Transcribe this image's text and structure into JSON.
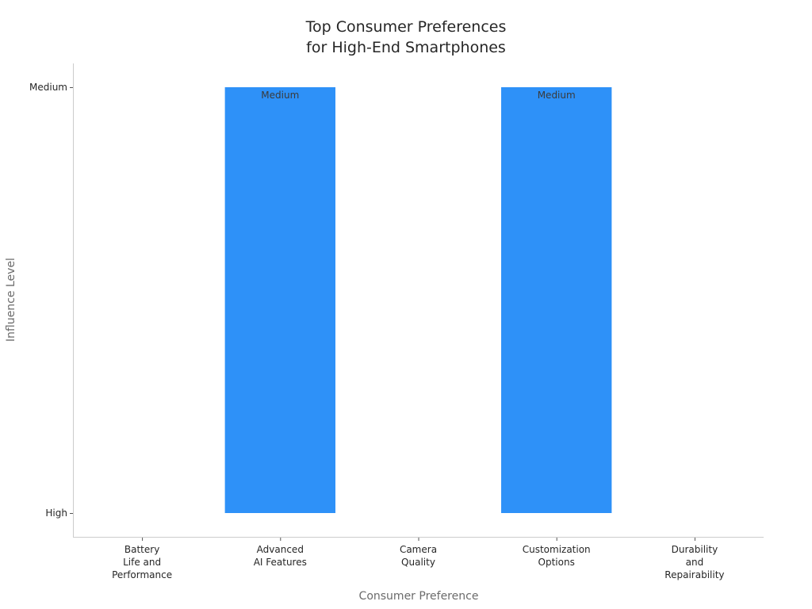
{
  "chart_data": {
    "type": "bar",
    "title_lines": [
      "Top Consumer Preferences",
      "for High-End Smartphones"
    ],
    "xlabel": "Consumer Preference",
    "ylabel": "Influence Level",
    "categories": [
      [
        "Battery",
        "Life and",
        "Performance"
      ],
      [
        "Advanced",
        "AI Features"
      ],
      [
        "Camera",
        "Quality"
      ],
      [
        "Customization",
        "Options"
      ],
      [
        "Durability",
        "and",
        "Repairability"
      ]
    ],
    "y_categories": [
      "High",
      "Medium"
    ],
    "series": [
      {
        "values": [
          "High",
          "Medium",
          "High",
          "Medium",
          "High"
        ],
        "data_labels": [
          "",
          "Medium",
          "",
          "Medium",
          ""
        ]
      }
    ],
    "bar_color": "#2e91f8",
    "grid": false,
    "legend": "none"
  }
}
